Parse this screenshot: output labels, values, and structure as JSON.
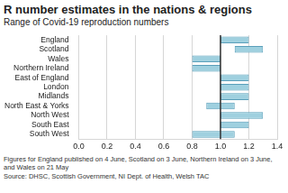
{
  "chart_data": {
    "type": "bar",
    "orientation": "horizontal",
    "title": "R number estimates in the nations & regions",
    "subtitle": "Range of Covid-19 reproduction numbers",
    "categories": [
      "England",
      "Scotland",
      "Wales",
      "Northern Ireland",
      "East of England",
      "London",
      "Midlands",
      "North East & Yorks",
      "North West",
      "South East",
      "South West"
    ],
    "values": [
      [
        1.0,
        1.2
      ],
      [
        1.1,
        1.3
      ],
      [
        0.8,
        1.0
      ],
      [
        0.8,
        1.0
      ],
      [
        1.0,
        1.2
      ],
      [
        1.0,
        1.2
      ],
      [
        1.0,
        1.2
      ],
      [
        0.9,
        1.1
      ],
      [
        1.0,
        1.3
      ],
      [
        1.0,
        1.2
      ],
      [
        0.8,
        1.1
      ]
    ],
    "color": "#9fd0df",
    "xlim": [
      0,
      1.4
    ],
    "xticks": [
      {
        "value": 0,
        "label": "0.0"
      },
      0.2,
      0.4,
      0.6,
      0.8,
      {
        "value": 1,
        "label": "1.0"
      },
      1.2,
      1.4
    ],
    "reference_line": 1,
    "grid": true,
    "annotations": [
      "Figures for England published on 4 June, Scotland on 3 June, Northern Ireland on 3 June, and Wales on 21 May",
      "Source: DHSC, Scottish Government, NI Dept. of Health, Welsh TAC"
    ]
  }
}
